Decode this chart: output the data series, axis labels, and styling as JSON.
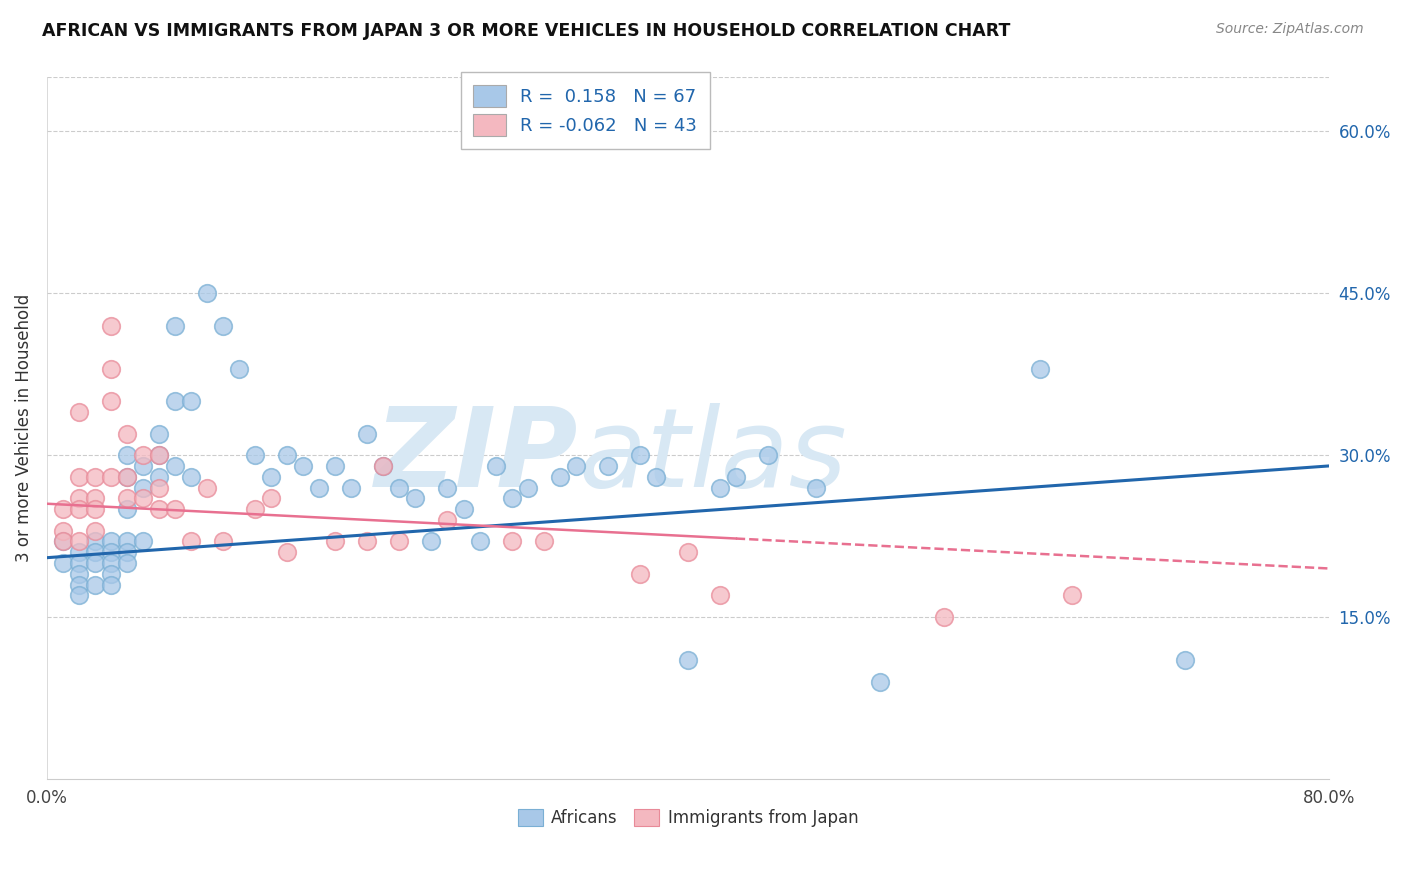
{
  "title": "AFRICAN VS IMMIGRANTS FROM JAPAN 3 OR MORE VEHICLES IN HOUSEHOLD CORRELATION CHART",
  "source": "Source: ZipAtlas.com",
  "ylabel": "3 or more Vehicles in Household",
  "xlim": [
    0.0,
    0.8
  ],
  "ylim": [
    0.0,
    0.65
  ],
  "y_ticks_right": [
    0.15,
    0.3,
    0.45,
    0.6
  ],
  "y_tick_labels_right": [
    "15.0%",
    "30.0%",
    "45.0%",
    "60.0%"
  ],
  "blue_color": "#a8c8e8",
  "blue_edge_color": "#7aafd4",
  "pink_color": "#f4b8c0",
  "pink_edge_color": "#e88a98",
  "blue_line_color": "#2166ac",
  "pink_line_color": "#e87090",
  "blue_R": 0.158,
  "blue_N": 67,
  "pink_R": -0.062,
  "pink_N": 43,
  "blue_scatter_x": [
    0.01,
    0.01,
    0.02,
    0.02,
    0.02,
    0.02,
    0.02,
    0.03,
    0.03,
    0.03,
    0.03,
    0.04,
    0.04,
    0.04,
    0.04,
    0.04,
    0.05,
    0.05,
    0.05,
    0.05,
    0.05,
    0.05,
    0.06,
    0.06,
    0.06,
    0.07,
    0.07,
    0.07,
    0.08,
    0.08,
    0.08,
    0.09,
    0.09,
    0.1,
    0.11,
    0.12,
    0.13,
    0.14,
    0.15,
    0.16,
    0.17,
    0.18,
    0.19,
    0.2,
    0.21,
    0.22,
    0.23,
    0.24,
    0.25,
    0.26,
    0.27,
    0.28,
    0.29,
    0.3,
    0.32,
    0.33,
    0.35,
    0.37,
    0.38,
    0.4,
    0.42,
    0.43,
    0.45,
    0.48,
    0.52,
    0.62,
    0.71
  ],
  "blue_scatter_y": [
    0.22,
    0.2,
    0.21,
    0.2,
    0.19,
    0.18,
    0.17,
    0.22,
    0.21,
    0.2,
    0.18,
    0.22,
    0.21,
    0.2,
    0.19,
    0.18,
    0.3,
    0.28,
    0.25,
    0.22,
    0.21,
    0.2,
    0.29,
    0.27,
    0.22,
    0.32,
    0.3,
    0.28,
    0.42,
    0.35,
    0.29,
    0.35,
    0.28,
    0.45,
    0.42,
    0.38,
    0.3,
    0.28,
    0.3,
    0.29,
    0.27,
    0.29,
    0.27,
    0.32,
    0.29,
    0.27,
    0.26,
    0.22,
    0.27,
    0.25,
    0.22,
    0.29,
    0.26,
    0.27,
    0.28,
    0.29,
    0.29,
    0.3,
    0.28,
    0.11,
    0.27,
    0.28,
    0.3,
    0.27,
    0.09,
    0.38,
    0.11
  ],
  "pink_scatter_x": [
    0.01,
    0.01,
    0.01,
    0.02,
    0.02,
    0.02,
    0.02,
    0.02,
    0.03,
    0.03,
    0.03,
    0.03,
    0.04,
    0.04,
    0.04,
    0.04,
    0.05,
    0.05,
    0.05,
    0.06,
    0.06,
    0.07,
    0.07,
    0.07,
    0.08,
    0.09,
    0.1,
    0.11,
    0.13,
    0.14,
    0.15,
    0.18,
    0.2,
    0.21,
    0.22,
    0.25,
    0.29,
    0.31,
    0.37,
    0.4,
    0.42,
    0.56,
    0.64
  ],
  "pink_scatter_y": [
    0.25,
    0.23,
    0.22,
    0.34,
    0.28,
    0.26,
    0.25,
    0.22,
    0.28,
    0.26,
    0.25,
    0.23,
    0.42,
    0.38,
    0.35,
    0.28,
    0.32,
    0.28,
    0.26,
    0.3,
    0.26,
    0.3,
    0.27,
    0.25,
    0.25,
    0.22,
    0.27,
    0.22,
    0.25,
    0.26,
    0.21,
    0.22,
    0.22,
    0.29,
    0.22,
    0.24,
    0.22,
    0.22,
    0.19,
    0.21,
    0.17,
    0.15,
    0.17
  ],
  "pink_data_extent": 0.43
}
